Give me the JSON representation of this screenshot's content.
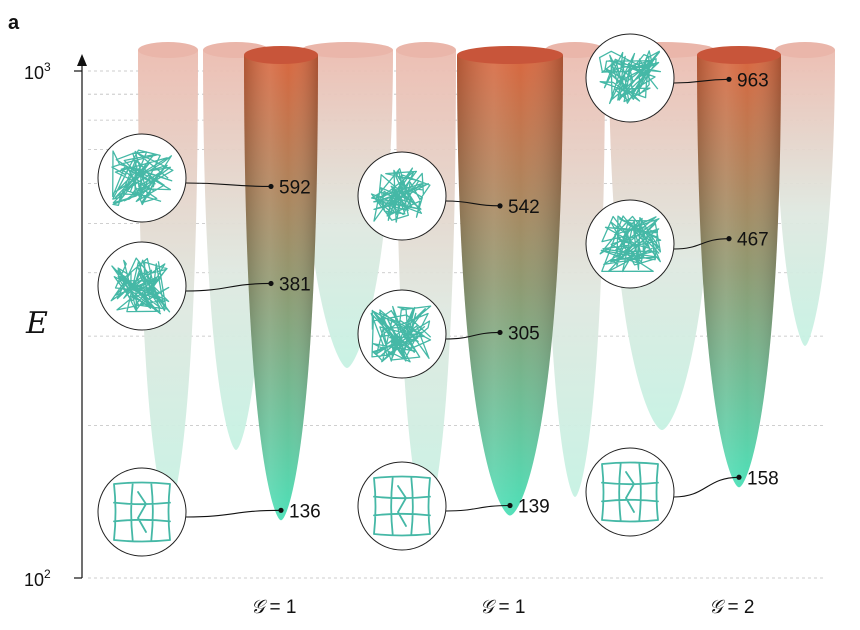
{
  "panel_label": "a",
  "y_axis": {
    "label": "E",
    "scale": "log",
    "range": [
      100,
      1000
    ],
    "ticks": [
      {
        "base": "10",
        "exp": "3",
        "value": 1000
      },
      {
        "base": "10",
        "exp": "2",
        "value": 100
      }
    ]
  },
  "colors": {
    "top": "#d9673f",
    "bottom": "#4fe0b8",
    "faded_top": "#ecbcb0",
    "faded_bottom": "#c6f2e3",
    "polymer": "#45b8a6"
  },
  "groups": [
    {
      "label_prefix": "𝒢",
      "label_value": "= 1",
      "minima": [
        {
          "value": 592,
          "label": "592"
        },
        {
          "value": 381,
          "label": "381"
        },
        {
          "value": 136,
          "label": "136"
        }
      ]
    },
    {
      "label_prefix": "𝒢",
      "label_value": "= 1",
      "minima": [
        {
          "value": 542,
          "label": "542"
        },
        {
          "value": 305,
          "label": "305"
        },
        {
          "value": 139,
          "label": "139"
        }
      ]
    },
    {
      "label_prefix": "𝒢",
      "label_value": "= 2",
      "minima": [
        {
          "value": 963,
          "label": "963"
        },
        {
          "value": 467,
          "label": "467"
        },
        {
          "value": 158,
          "label": "158"
        }
      ]
    }
  ]
}
